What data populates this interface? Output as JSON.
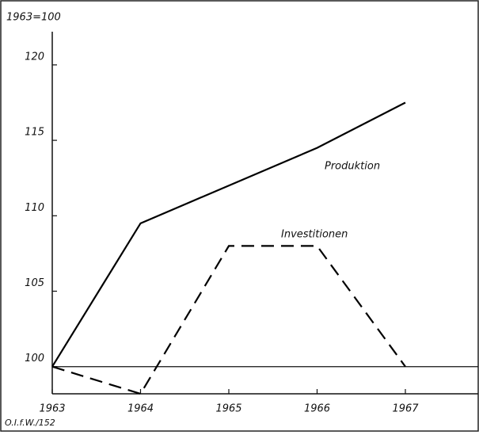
{
  "chart_data": {
    "type": "line",
    "y_label": "1963=100",
    "source": "O.I.f.W./152",
    "categories": [
      "1963",
      "1964",
      "1965",
      "1966",
      "1967"
    ],
    "series": [
      {
        "name": "Produktion",
        "color": "#000000",
        "style": "solid",
        "values": [
          100,
          109.5,
          112,
          114.5,
          117.5
        ]
      },
      {
        "name": "Investitionen",
        "color": "#000000",
        "style": "dashed",
        "values": [
          100,
          98.2,
          108,
          108,
          100
        ]
      }
    ],
    "ylim": [
      98.2,
      122.2
    ],
    "yticks": [
      100,
      105,
      110,
      115,
      120
    ],
    "reference_line": 100
  }
}
